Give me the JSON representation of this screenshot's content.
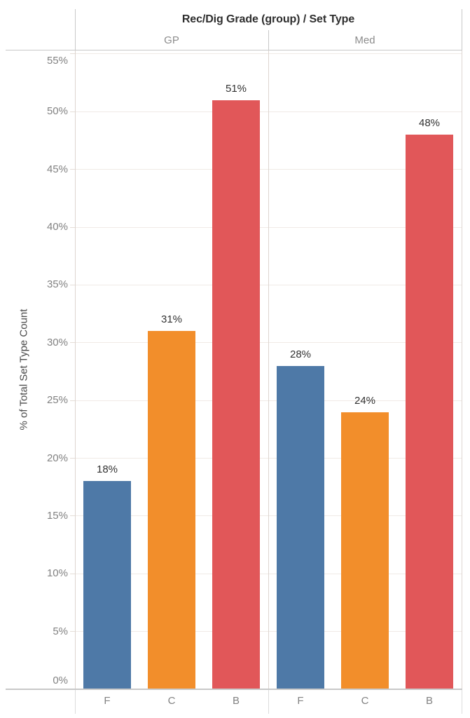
{
  "chart_data": {
    "type": "bar",
    "title": "Rec/Dig Grade (group) / Set Type",
    "ylabel": "% of Total Set Type Count",
    "xlabel": "",
    "categories": [
      "F",
      "C",
      "B"
    ],
    "panels": [
      {
        "label": "GP",
        "values": [
          18,
          31,
          51
        ],
        "value_labels": [
          "18%",
          "31%",
          "51%"
        ]
      },
      {
        "label": "Med",
        "values": [
          28,
          24,
          48
        ],
        "value_labels": [
          "28%",
          "24%",
          "48%"
        ]
      }
    ],
    "series_colors": {
      "F": "#4e79a7",
      "C": "#f28e2b",
      "B": "#e15759"
    },
    "y_ticks": [
      "0%",
      "5%",
      "10%",
      "15%",
      "20%",
      "25%",
      "30%",
      "35%",
      "40%",
      "45%",
      "50%",
      "55%"
    ],
    "y_tick_values": [
      0,
      5,
      10,
      15,
      20,
      25,
      30,
      35,
      40,
      45,
      50,
      55
    ],
    "ylim": [
      0,
      55.3
    ],
    "grid": true,
    "legend": "none"
  },
  "colors": {
    "bar_blue": "#4e79a7",
    "bar_orange": "#f28e2b",
    "bar_red": "#e15759",
    "axis_line": "#c8c8c8",
    "gridline": "#f0eae6",
    "header_text": "#2e2e2e",
    "muted_text": "#8c8c8c"
  }
}
